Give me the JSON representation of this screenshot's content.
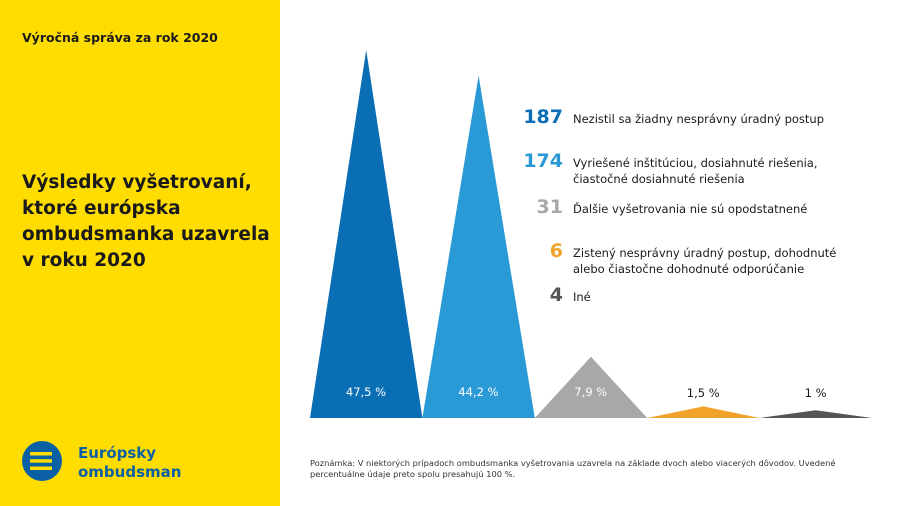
{
  "header": "Výročná správa za rok 2020",
  "logo": "Európsky\nombudsman",
  "chart_data": {
    "type": "triangle",
    "title": "Výsledky vyšetrovaní,\nktoré európska\nombudsmanka uzavrela\nv roku 2020",
    "categories": [
      "Nezistil sa žiadny nesprávny úradný postup",
      "Vyriešené inštitúciou, dosiahnuté riešenia,\nčiastočné dosiahnuté riešenia",
      "Ďalšie vyšetrovania nie sú opodstatnené",
      "Zistený nesprávny úradný postup, dohodnuté\nalebo čiastočne dohodnuté odporúčanie",
      "Iné"
    ],
    "counts": [
      187,
      174,
      31,
      6,
      4
    ],
    "values": [
      47.5,
      44.2,
      7.9,
      1.5,
      1
    ],
    "value_labels": [
      "47,5 %",
      "44,2 %",
      "7,9 %",
      "1,5 %",
      "1 %"
    ],
    "colors": [
      "#0a6eb4",
      "#2a9ad6",
      "#a8a8a8",
      "#f0a328",
      "#555555"
    ],
    "note": "Poznámka: V niektorých prípadoch ombudsmanka vyšetrovania uzavrela na základe dvoch alebo viacerých dôvodov. Uvedené percentuálne údaje preto spolu presahujú 100 %."
  }
}
